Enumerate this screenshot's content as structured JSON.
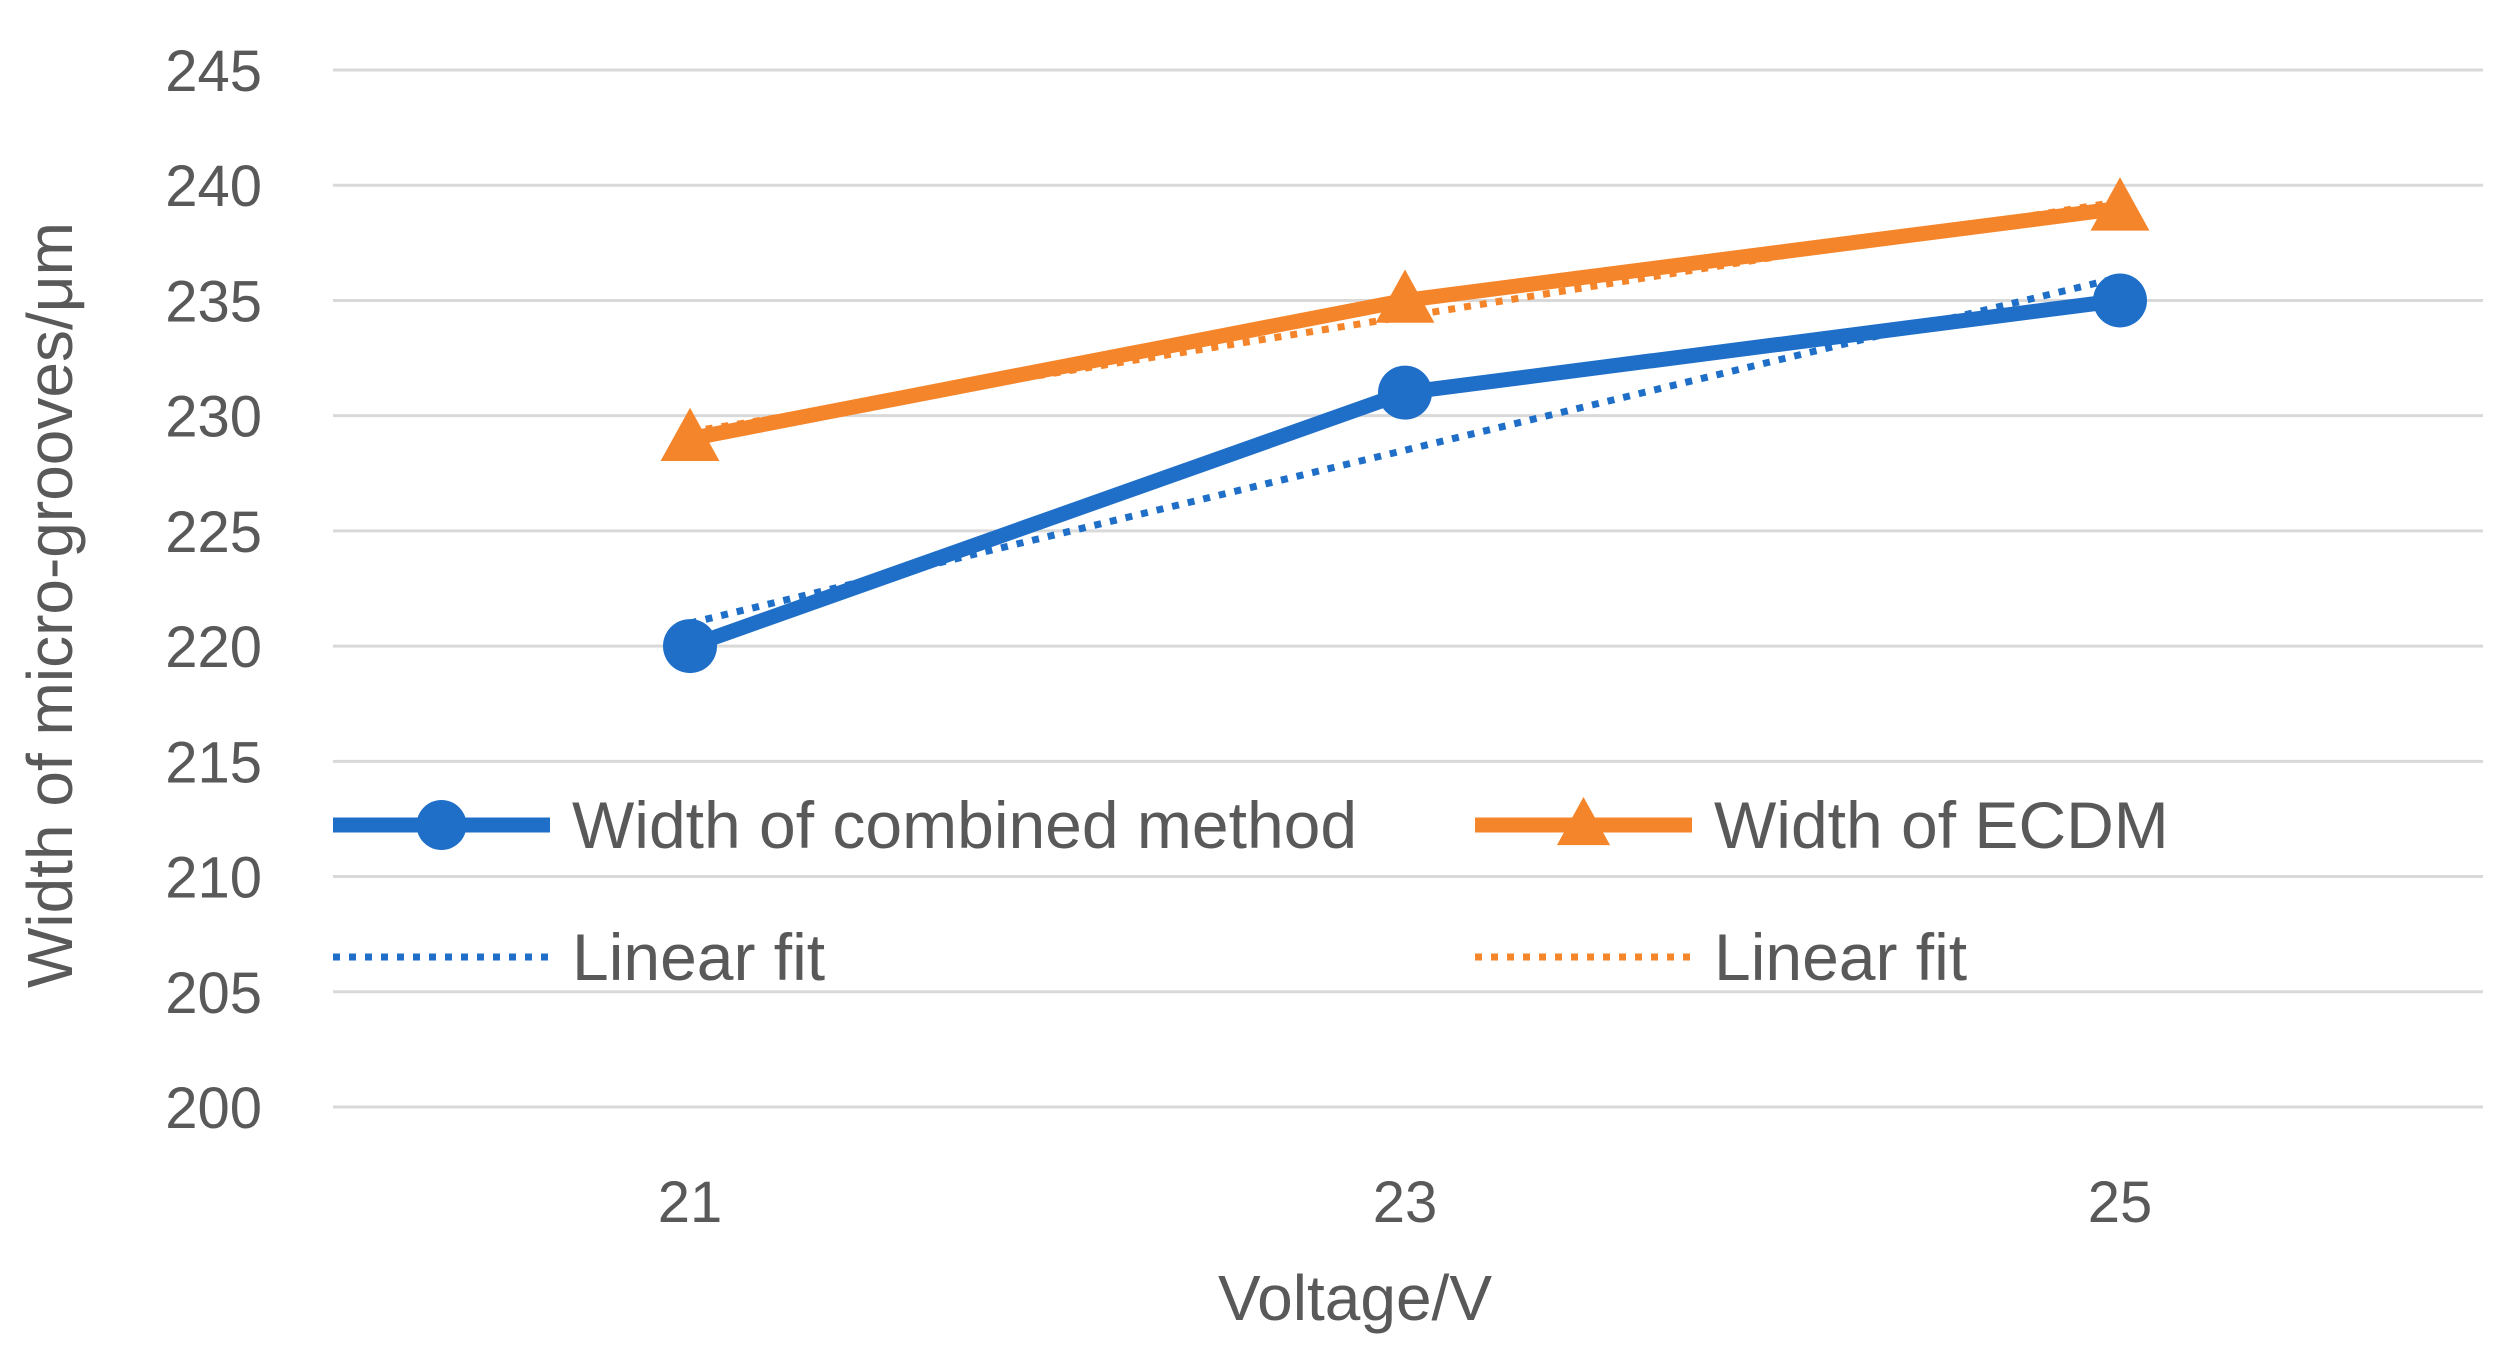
{
  "chart_data": {
    "type": "line",
    "title": "",
    "xlabel": "Voltage/V",
    "ylabel": "Width of micro-grooves/μm",
    "x": [
      21,
      23,
      25
    ],
    "x_tick_labels": [
      "21",
      "23",
      "25"
    ],
    "ylim": [
      200,
      245
    ],
    "y_ticks": [
      200,
      205,
      210,
      215,
      220,
      225,
      230,
      235,
      240,
      245
    ],
    "grid": "horizontal",
    "legend_position": "inside-bottom",
    "series": [
      {
        "name": "Width of combined method",
        "values": [
          220,
          231,
          235
        ],
        "color": "#1f6fc8",
        "marker": "circle",
        "style": "solid"
      },
      {
        "name": "Width of ECDM",
        "values": [
          229,
          235,
          239
        ],
        "color": "#f5852a",
        "marker": "triangle",
        "style": "solid"
      },
      {
        "name": "Linear fit",
        "fit_of": "Width of combined method",
        "values": [
          221,
          228.5,
          236
        ],
        "color": "#1f6fc8",
        "marker": "none",
        "style": "dotted"
      },
      {
        "name": "Linear fit",
        "fit_of": "Width of ECDM",
        "values": [
          229.3,
          234.3,
          239.3
        ],
        "color": "#f5852a",
        "marker": "none",
        "style": "dotted"
      }
    ]
  }
}
